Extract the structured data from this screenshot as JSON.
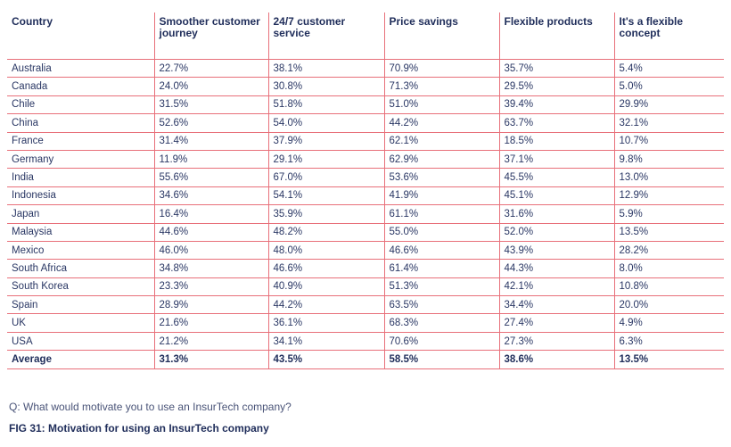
{
  "chart_data": {
    "type": "table",
    "columns": [
      "Country",
      "Smoother customer journey",
      "24/7 customer service",
      "Price savings",
      "Flexible products",
      "It's a flexible concept"
    ],
    "rows": [
      [
        "Australia",
        "22.7%",
        "38.1%",
        "70.9%",
        "35.7%",
        "5.4%"
      ],
      [
        "Canada",
        "24.0%",
        "30.8%",
        "71.3%",
        "29.5%",
        "5.0%"
      ],
      [
        "Chile",
        "31.5%",
        "51.8%",
        "51.0%",
        "39.4%",
        "29.9%"
      ],
      [
        "China",
        "52.6%",
        "54.0%",
        "44.2%",
        "63.7%",
        "32.1%"
      ],
      [
        "France",
        "31.4%",
        "37.9%",
        "62.1%",
        "18.5%",
        "10.7%"
      ],
      [
        "Germany",
        "11.9%",
        "29.1%",
        "62.9%",
        "37.1%",
        "9.8%"
      ],
      [
        "India",
        "55.6%",
        "67.0%",
        "53.6%",
        "45.5%",
        "13.0%"
      ],
      [
        "Indonesia",
        "34.6%",
        "54.1%",
        "41.9%",
        "45.1%",
        "12.9%"
      ],
      [
        "Japan",
        "16.4%",
        "35.9%",
        "61.1%",
        "31.6%",
        "5.9%"
      ],
      [
        "Malaysia",
        "44.6%",
        "48.2%",
        "55.0%",
        "52.0%",
        "13.5%"
      ],
      [
        "Mexico",
        "46.0%",
        "48.0%",
        "46.6%",
        "43.9%",
        "28.2%"
      ],
      [
        "South Africa",
        "34.8%",
        "46.6%",
        "61.4%",
        "44.3%",
        "8.0%"
      ],
      [
        "South Korea",
        "23.3%",
        "40.9%",
        "51.3%",
        "42.1%",
        "10.8%"
      ],
      [
        "Spain",
        "28.9%",
        "44.2%",
        "63.5%",
        "34.4%",
        "20.0%"
      ],
      [
        "UK",
        "21.6%",
        "36.1%",
        "68.3%",
        "27.4%",
        "4.9%"
      ],
      [
        "USA",
        "21.2%",
        "34.1%",
        "70.6%",
        "27.3%",
        "6.3%"
      ]
    ],
    "average_row": [
      "Average",
      "31.3%",
      "43.5%",
      "58.5%",
      "38.6%",
      "13.5%"
    ]
  },
  "footer": {
    "question": "Q: What would motivate you to use an InsurTech company?",
    "figure_caption": "FIG 31: Motivation for using an InsurTech company"
  },
  "colors": {
    "rule_line": "#e8707a",
    "header_text": "#1f2d5a",
    "body_text": "#2a3764"
  }
}
